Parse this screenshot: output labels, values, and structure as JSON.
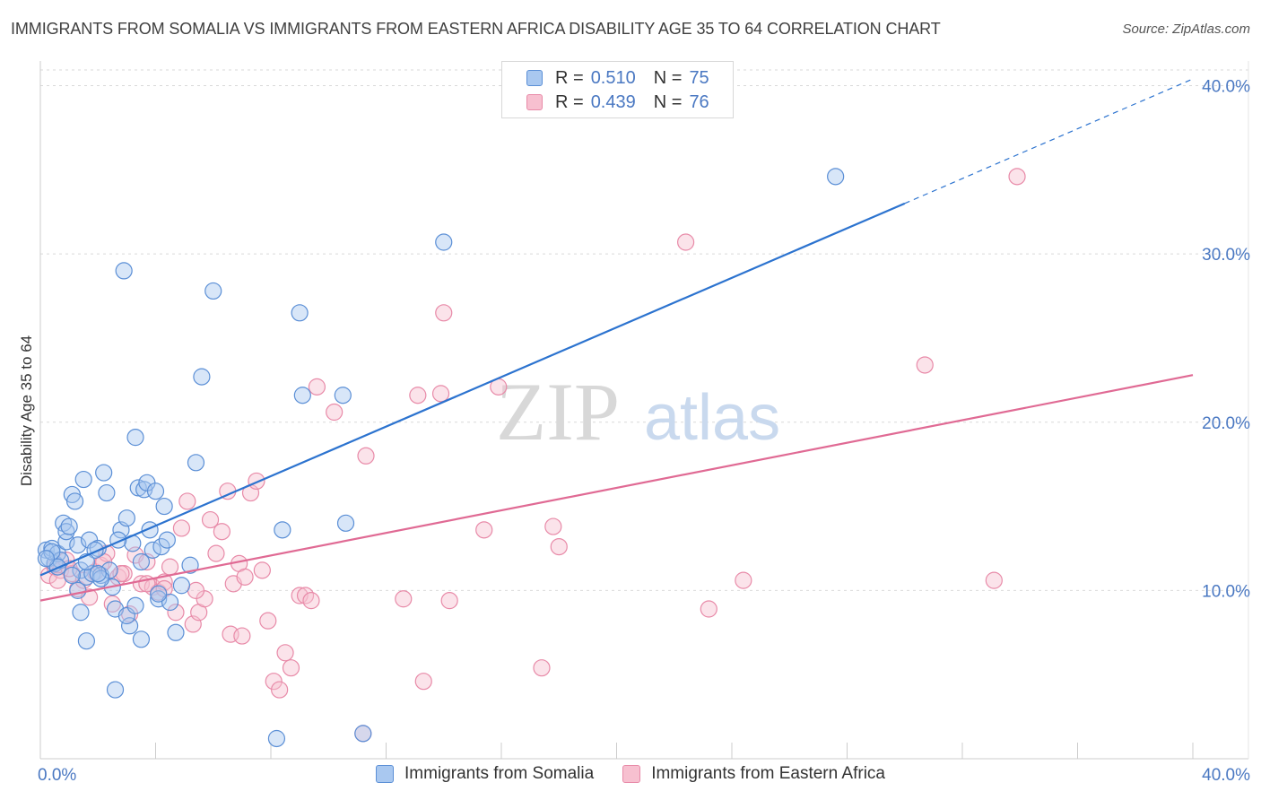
{
  "title": "IMMIGRANTS FROM SOMALIA VS IMMIGRANTS FROM EASTERN AFRICA DISABILITY AGE 35 TO 64 CORRELATION CHART",
  "source": "Source: ZipAtlas.com",
  "legend": {
    "rows": [
      {
        "r_label": "R =",
        "r_value": "0.510",
        "n_label": "N =",
        "n_value": "75"
      },
      {
        "r_label": "R =",
        "r_value": "0.439",
        "n_label": "N =",
        "n_value": "76"
      }
    ]
  },
  "bottom_legend": {
    "somalia": "Immigrants from Somalia",
    "eastern_africa": "Immigrants from Eastern Africa"
  },
  "watermark": "ZIPatlas",
  "colors": {
    "somalia_fill": "#a9c8f0",
    "somalia_stroke": "#5b8fd6",
    "somalia_line": "#2c73cf",
    "eastern_fill": "#f7c0d0",
    "eastern_stroke": "#e88aa8",
    "eastern_line": "#e06a94",
    "axis_label": "#4a78c2",
    "grid": "#d9d9d9"
  },
  "chart_data": {
    "type": "scatter",
    "title": "IMMIGRANTS FROM SOMALIA VS IMMIGRANTS FROM EASTERN AFRICA DISABILITY AGE 35 TO 64 CORRELATION CHART",
    "xlabel": "",
    "ylabel": "Disability Age 35 to 64",
    "xlim": [
      0,
      40
    ],
    "ylim": [
      0,
      42
    ],
    "x_tick_labels": [
      "0.0%",
      "40.0%"
    ],
    "y_ticks": [
      10,
      20,
      30,
      40
    ],
    "y_tick_labels": [
      "10.0%",
      "20.0%",
      "30.0%",
      "40.0%"
    ],
    "grid": true,
    "legend_position": "top-center",
    "series": [
      {
        "name": "Immigrants from Somalia",
        "R": 0.51,
        "N": 75,
        "trend": {
          "x0": 0,
          "y0": 10.9,
          "x1": 30,
          "y1": 33.0,
          "dashed_to_x": 40,
          "dashed_to_y": 40.4
        },
        "points": [
          [
            0.2,
            12.4
          ],
          [
            0.3,
            11.9
          ],
          [
            0.4,
            12.5
          ],
          [
            0.5,
            11.6
          ],
          [
            0.6,
            12.2
          ],
          [
            0.7,
            11.8
          ],
          [
            0.8,
            14.0
          ],
          [
            0.9,
            12.9
          ],
          [
            0.9,
            13.5
          ],
          [
            1.0,
            13.8
          ],
          [
            1.1,
            15.7
          ],
          [
            1.2,
            15.3
          ],
          [
            1.3,
            12.7
          ],
          [
            1.4,
            11.2
          ],
          [
            1.5,
            16.6
          ],
          [
            1.6,
            10.8
          ],
          [
            1.7,
            13.0
          ],
          [
            1.8,
            11.0
          ],
          [
            2.0,
            12.5
          ],
          [
            2.1,
            10.9
          ],
          [
            2.2,
            17.0
          ],
          [
            2.3,
            15.8
          ],
          [
            2.4,
            11.2
          ],
          [
            2.5,
            10.2
          ],
          [
            2.6,
            8.9
          ],
          [
            2.8,
            13.6
          ],
          [
            2.9,
            29.0
          ],
          [
            3.0,
            14.3
          ],
          [
            3.1,
            7.9
          ],
          [
            3.2,
            12.8
          ],
          [
            3.3,
            19.1
          ],
          [
            3.4,
            16.1
          ],
          [
            3.5,
            11.7
          ],
          [
            3.6,
            16.0
          ],
          [
            3.7,
            16.4
          ],
          [
            3.8,
            13.6
          ],
          [
            3.9,
            12.4
          ],
          [
            4.0,
            15.9
          ],
          [
            4.1,
            9.5
          ],
          [
            4.2,
            12.6
          ],
          [
            4.3,
            15.0
          ],
          [
            4.4,
            13.0
          ],
          [
            4.5,
            9.3
          ],
          [
            4.7,
            7.5
          ],
          [
            4.9,
            10.3
          ],
          [
            5.2,
            11.5
          ],
          [
            5.4,
            17.6
          ],
          [
            5.6,
            22.7
          ],
          [
            6.0,
            27.8
          ],
          [
            8.2,
            1.2
          ],
          [
            8.4,
            13.6
          ],
          [
            9.0,
            26.5
          ],
          [
            9.1,
            21.6
          ],
          [
            10.5,
            21.6
          ],
          [
            10.6,
            14.0
          ],
          [
            11.2,
            1.5
          ],
          [
            14.0,
            30.7
          ],
          [
            27.6,
            34.6
          ],
          [
            1.6,
            7.0
          ],
          [
            2.6,
            4.1
          ],
          [
            3.5,
            7.1
          ],
          [
            2.1,
            10.7
          ],
          [
            1.4,
            8.7
          ],
          [
            0.6,
            11.4
          ],
          [
            1.1,
            10.9
          ],
          [
            1.9,
            12.4
          ],
          [
            3.0,
            8.5
          ],
          [
            4.1,
            9.8
          ],
          [
            2.7,
            13.0
          ],
          [
            0.4,
            12.3
          ],
          [
            1.3,
            10.0
          ],
          [
            2.0,
            11.0
          ],
          [
            3.3,
            9.1
          ],
          [
            0.2,
            11.9
          ],
          [
            1.6,
            11.7
          ]
        ]
      },
      {
        "name": "Immigrants from Eastern Africa",
        "R": 0.439,
        "N": 76,
        "trend": {
          "x0": 0,
          "y0": 9.4,
          "x1": 40,
          "y1": 22.8
        },
        "points": [
          [
            0.3,
            10.9
          ],
          [
            0.5,
            11.4
          ],
          [
            0.7,
            11.2
          ],
          [
            0.9,
            11.8
          ],
          [
            1.1,
            11.0
          ],
          [
            1.3,
            10.1
          ],
          [
            1.5,
            10.6
          ],
          [
            1.7,
            9.6
          ],
          [
            1.9,
            11.1
          ],
          [
            2.1,
            11.5
          ],
          [
            2.3,
            12.2
          ],
          [
            2.5,
            9.2
          ],
          [
            2.7,
            10.8
          ],
          [
            2.9,
            11.0
          ],
          [
            3.1,
            8.6
          ],
          [
            3.3,
            12.1
          ],
          [
            3.5,
            10.4
          ],
          [
            3.7,
            11.7
          ],
          [
            3.9,
            10.2
          ],
          [
            4.1,
            9.9
          ],
          [
            4.3,
            10.5
          ],
          [
            4.5,
            11.4
          ],
          [
            4.7,
            8.7
          ],
          [
            4.9,
            13.7
          ],
          [
            5.1,
            15.3
          ],
          [
            5.3,
            8.0
          ],
          [
            5.5,
            8.7
          ],
          [
            5.7,
            9.5
          ],
          [
            5.9,
            14.2
          ],
          [
            6.1,
            12.2
          ],
          [
            6.3,
            13.5
          ],
          [
            6.5,
            15.9
          ],
          [
            6.7,
            10.4
          ],
          [
            6.9,
            11.6
          ],
          [
            7.1,
            10.8
          ],
          [
            7.3,
            15.8
          ],
          [
            7.5,
            16.5
          ],
          [
            7.7,
            11.2
          ],
          [
            7.9,
            8.2
          ],
          [
            8.1,
            4.6
          ],
          [
            8.3,
            4.1
          ],
          [
            8.5,
            6.3
          ],
          [
            8.7,
            5.4
          ],
          [
            9.0,
            9.7
          ],
          [
            9.2,
            9.7
          ],
          [
            9.4,
            9.4
          ],
          [
            9.6,
            22.1
          ],
          [
            10.2,
            20.6
          ],
          [
            11.2,
            1.5
          ],
          [
            11.3,
            18.0
          ],
          [
            12.6,
            9.5
          ],
          [
            13.1,
            21.6
          ],
          [
            13.9,
            21.7
          ],
          [
            14.0,
            26.5
          ],
          [
            14.2,
            9.4
          ],
          [
            15.4,
            13.6
          ],
          [
            15.9,
            22.1
          ],
          [
            17.4,
            5.4
          ],
          [
            17.8,
            13.8
          ],
          [
            18.0,
            12.6
          ],
          [
            22.4,
            30.7
          ],
          [
            23.2,
            8.9
          ],
          [
            24.4,
            10.6
          ],
          [
            30.7,
            23.4
          ],
          [
            33.1,
            10.6
          ],
          [
            33.9,
            34.6
          ],
          [
            13.3,
            4.6
          ],
          [
            6.6,
            7.4
          ],
          [
            7.0,
            7.3
          ],
          [
            4.3,
            10.1
          ],
          [
            2.2,
            11.7
          ],
          [
            1.0,
            11.3
          ],
          [
            3.7,
            10.4
          ],
          [
            5.4,
            10.0
          ],
          [
            2.8,
            11.0
          ],
          [
            0.6,
            10.6
          ]
        ]
      }
    ]
  }
}
